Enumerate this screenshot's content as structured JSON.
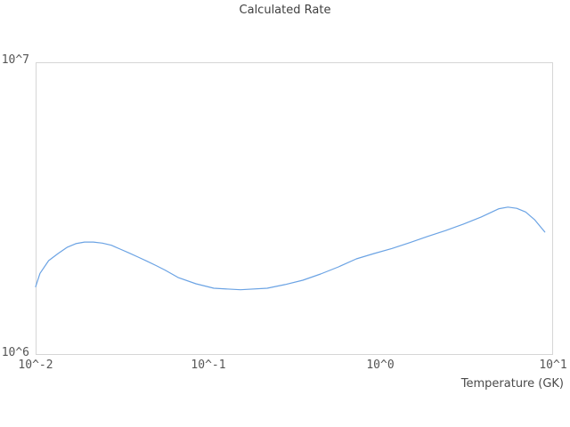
{
  "chart_data": {
    "type": "line",
    "title": "Calculated Rate",
    "xlabel": "Temperature (GK)",
    "ylabel": "",
    "x_scale": "log",
    "y_scale": "log",
    "xlim": [
      0.01,
      10
    ],
    "ylim": [
      1000000,
      10000000
    ],
    "grid": false,
    "legend": false,
    "x_ticks": [
      {
        "value": 0.01,
        "label": "10^-2"
      },
      {
        "value": 0.1,
        "label": "10^-1"
      },
      {
        "value": 1,
        "label": "10^0"
      },
      {
        "value": 10,
        "label": "10^1"
      }
    ],
    "y_ticks": [
      {
        "value": 1000000,
        "label": "10^6"
      },
      {
        "value": 10000000,
        "label": "10^7"
      }
    ],
    "series": [
      {
        "name": "Calculated Rate",
        "color": "#6ba3e4",
        "points": [
          [
            0.01,
            1710000
          ],
          [
            0.0106,
            1900000
          ],
          [
            0.0119,
            2100000
          ],
          [
            0.0135,
            2220000
          ],
          [
            0.0152,
            2330000
          ],
          [
            0.0171,
            2400000
          ],
          [
            0.0192,
            2430000
          ],
          [
            0.0216,
            2430000
          ],
          [
            0.0244,
            2410000
          ],
          [
            0.0275,
            2370000
          ],
          [
            0.0309,
            2300000
          ],
          [
            0.0349,
            2230000
          ],
          [
            0.0393,
            2160000
          ],
          [
            0.0443,
            2090000
          ],
          [
            0.0499,
            2020000
          ],
          [
            0.0563,
            1950000
          ],
          [
            0.0669,
            1840000
          ],
          [
            0.085,
            1750000
          ],
          [
            0.108,
            1690000
          ],
          [
            0.154,
            1670000
          ],
          [
            0.22,
            1690000
          ],
          [
            0.279,
            1740000
          ],
          [
            0.354,
            1800000
          ],
          [
            0.449,
            1890000
          ],
          [
            0.57,
            2000000
          ],
          [
            0.723,
            2130000
          ],
          [
            0.917,
            2220000
          ],
          [
            1.16,
            2310000
          ],
          [
            1.48,
            2420000
          ],
          [
            1.87,
            2540000
          ],
          [
            2.38,
            2660000
          ],
          [
            3.02,
            2800000
          ],
          [
            3.83,
            2960000
          ],
          [
            4.86,
            3160000
          ],
          [
            5.47,
            3200000
          ],
          [
            6.16,
            3170000
          ],
          [
            6.93,
            3080000
          ],
          [
            7.81,
            2900000
          ],
          [
            8.95,
            2630000
          ]
        ]
      }
    ]
  },
  "colors": {
    "background": "#ffffff",
    "line": "#6ba3e4",
    "plot_border": "#d6d6d6",
    "title_text": "#3f3f3f",
    "tick_text": "#555555",
    "axis_label_text": "#4a4a4a"
  }
}
